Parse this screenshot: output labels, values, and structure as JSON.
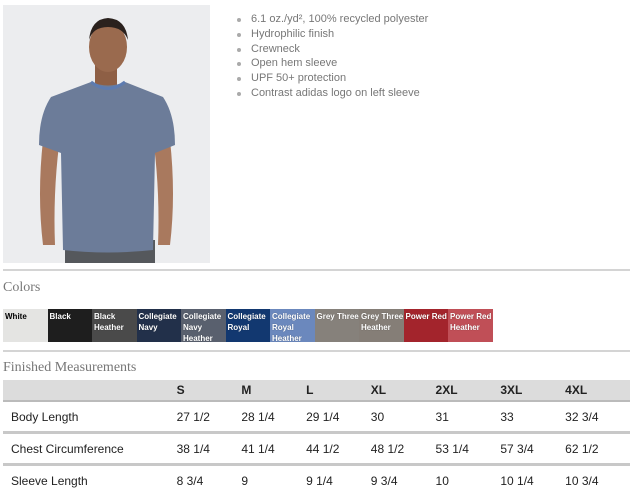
{
  "product_image": {
    "alt_subject": "model-wearing-tshirt"
  },
  "features": [
    "6.1 oz./yd², 100% recycled polyester",
    "Hydrophilic finish",
    "Crewneck",
    "Open hem sleeve",
    "UPF 50+ protection",
    "Contrast adidas logo on left sleeve"
  ],
  "colors_title": "Colors",
  "colors": [
    {
      "label": "White",
      "hex": "#e4e4e2"
    },
    {
      "label": "Black",
      "hex": "#1e1e1e"
    },
    {
      "label": "Black Heather",
      "hex": "#4a4a4a"
    },
    {
      "label": "Collegiate Navy",
      "hex": "#22304a"
    },
    {
      "label": "Collegiate Navy Heather",
      "hex": "#59606e"
    },
    {
      "label": "Collegiate Royal",
      "hex": "#123870"
    },
    {
      "label": "Collegiate Royal Heather",
      "hex": "#6b88bd"
    },
    {
      "label": "Grey Three",
      "hex": "#86817b"
    },
    {
      "label": "Grey Three Heather",
      "hex": "#857e77"
    },
    {
      "label": "Power Red",
      "hex": "#a3242c"
    },
    {
      "label": "Power Red Heather",
      "hex": "#c04f57"
    }
  ],
  "measurements_title": "Finished Measurements",
  "measurements": {
    "sizes": [
      "S",
      "M",
      "L",
      "XL",
      "2XL",
      "3XL",
      "4XL"
    ],
    "rows": [
      {
        "label": "Body Length",
        "values": [
          "27 1/2",
          "28 1/4",
          "29 1/4",
          "30",
          "31",
          "33",
          "32 3/4"
        ]
      },
      {
        "label": "Chest Circumference",
        "values": [
          "38 1/4",
          "41 1/4",
          "44 1/2",
          "48 1/2",
          "53 1/4",
          "57 3/4",
          "62 1/2"
        ]
      },
      {
        "label": "Sleeve Length",
        "values": [
          "8 3/4",
          "9",
          "9 1/4",
          "9 3/4",
          "10",
          "10 1/4",
          "10 3/4"
        ]
      }
    ]
  }
}
